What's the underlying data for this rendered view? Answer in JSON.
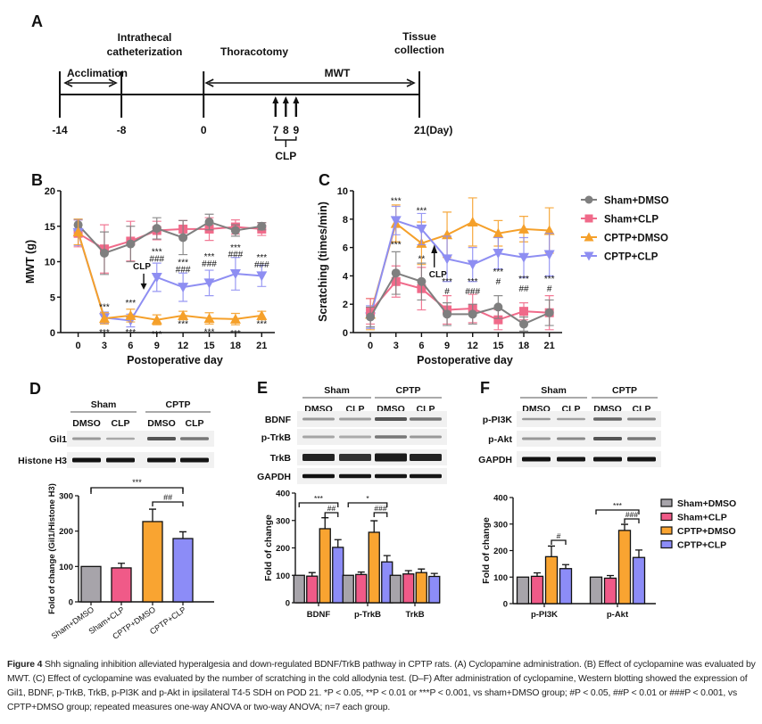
{
  "panels": {
    "A": {
      "label": "A",
      "timeline": {
        "ticks": [
          "-14",
          "-8",
          "0",
          "7",
          "8",
          "9",
          "21(Day)"
        ],
        "tick_days": [
          -14,
          -8,
          0,
          7,
          8,
          9,
          21
        ],
        "events": {
          "intrathecal": [
            "Intrathecal",
            "catheterization"
          ],
          "thoracotomy": "Thoracotomy",
          "tissue": [
            "Tissue",
            "collection"
          ],
          "acclimation": "Acclimation",
          "mwt": "MWT",
          "clp": "CLP"
        }
      }
    },
    "B": {
      "label": "B"
    },
    "C": {
      "label": "C"
    },
    "D": {
      "label": "D",
      "blot": {
        "groups": [
          "Sham",
          "CPTP"
        ],
        "lanes": [
          "DMSO",
          "CLP",
          "DMSO",
          "CLP"
        ],
        "rows": [
          "Gil1",
          "Histone H3"
        ]
      }
    },
    "E": {
      "label": "E",
      "blot": {
        "groups": [
          "Sham",
          "CPTP"
        ],
        "lanes": [
          "DMSO",
          "CLP",
          "DMSO",
          "CLP"
        ],
        "rows": [
          "BDNF",
          "p-TrkB",
          "TrkB",
          "GAPDH"
        ]
      }
    },
    "F": {
      "label": "F",
      "blot": {
        "groups": [
          "Sham",
          "CPTP"
        ],
        "lanes": [
          "DMSO",
          "CLP",
          "DMSO",
          "CLP"
        ],
        "rows": [
          "p-PI3K",
          "p-Akt",
          "GAPDH"
        ]
      }
    }
  },
  "colors": {
    "Sham+DMSO": "#7f7f7f",
    "Sham+CLP": "#f06a8a",
    "CPTP+DMSO": "#f5a02a",
    "CPTP+CLP": "#8e8ef2",
    "bar_sham_dmso": "#a7a4aa",
    "bar_sham_clp": "#f05a88",
    "bar_cptp_dmso": "#f9a431",
    "bar_cptp_clp": "#8c8cf7"
  },
  "legend": [
    "Sham+DMSO",
    "Sham+CLP",
    "CPTP+DMSO",
    "CPTP+CLP"
  ],
  "chart_data": [
    {
      "id": "B",
      "type": "line",
      "title": "",
      "xlabel": "Postoperative day",
      "ylabel": "MWT (g)",
      "x": [
        0,
        3,
        6,
        9,
        12,
        15,
        18,
        21
      ],
      "xticks": [
        "0",
        "3",
        "6",
        "9",
        "12",
        "15",
        "18",
        "21"
      ],
      "ylim": [
        0,
        20
      ],
      "yticks": [
        "0",
        "5",
        "10",
        "15",
        "20"
      ],
      "series": [
        {
          "name": "Sham+CLP",
          "marker": "square",
          "values": [
            14.0,
            11.8,
            12.9,
            14.4,
            14.6,
            14.6,
            14.9,
            14.6
          ],
          "err": [
            1.9,
            3.4,
            2.8,
            1.3,
            1.2,
            1.6,
            1.0,
            0.9
          ]
        },
        {
          "name": "Sham+DMSO",
          "marker": "circle",
          "values": [
            15.2,
            11.2,
            12.5,
            14.7,
            13.4,
            15.6,
            14.4,
            15.0
          ],
          "err": [
            0.8,
            3.0,
            2.5,
            1.5,
            2.4,
            1.1,
            0.8,
            0.5
          ]
        },
        {
          "name": "CPTP+CLP",
          "marker": "triangle-down",
          "values": [
            14.1,
            2.1,
            1.7,
            7.8,
            6.4,
            7.0,
            8.3,
            8.0
          ],
          "err": [
            1.8,
            0.8,
            0.9,
            2.0,
            2.0,
            1.8,
            2.3,
            1.5
          ]
        },
        {
          "name": "CPTP+DMSO",
          "marker": "triangle-up",
          "values": [
            14.2,
            2.0,
            2.4,
            1.8,
            2.4,
            2.0,
            1.9,
            2.4
          ],
          "err": [
            1.8,
            0.8,
            0.9,
            0.7,
            0.6,
            0.8,
            0.8,
            0.6
          ]
        }
      ],
      "annotations": [
        {
          "x": 3,
          "y": 3.2,
          "text": "***"
        },
        {
          "x": 3,
          "y": -0.4,
          "text": "***"
        },
        {
          "x": 6,
          "y": 3.8,
          "text": "***"
        },
        {
          "x": 6,
          "y": -0.4,
          "text": "***"
        },
        {
          "x": 9,
          "y": 11.0,
          "text": "***"
        },
        {
          "x": 9,
          "y": 10.0,
          "text": "###"
        },
        {
          "x": 9,
          "y": -0.6,
          "text": "***"
        },
        {
          "x": 12,
          "y": 9.5,
          "text": "***"
        },
        {
          "x": 12,
          "y": 8.5,
          "text": "###"
        },
        {
          "x": 12,
          "y": 0.8,
          "text": "***"
        },
        {
          "x": 15,
          "y": 10.3,
          "text": "***"
        },
        {
          "x": 15,
          "y": 9.3,
          "text": "###"
        },
        {
          "x": 15,
          "y": -0.3,
          "text": "***"
        },
        {
          "x": 18,
          "y": 11.6,
          "text": "***"
        },
        {
          "x": 18,
          "y": 10.6,
          "text": "###"
        },
        {
          "x": 18,
          "y": -0.5,
          "text": "***"
        },
        {
          "x": 21,
          "y": 10.2,
          "text": "***"
        },
        {
          "x": 21,
          "y": 9.2,
          "text": "###"
        },
        {
          "x": 21,
          "y": 0.8,
          "text": "***"
        }
      ],
      "clp_marker": {
        "x": 7.5,
        "label": "CLP",
        "direction": "down"
      }
    },
    {
      "id": "C",
      "type": "line",
      "title": "",
      "xlabel": "Postoperative day",
      "ylabel": "Scratching (times/min)",
      "x": [
        0,
        3,
        6,
        9,
        12,
        15,
        18,
        21
      ],
      "xticks": [
        "0",
        "3",
        "6",
        "9",
        "12",
        "15",
        "18",
        "21"
      ],
      "ylim": [
        0,
        10
      ],
      "yticks": [
        "0",
        "2",
        "4",
        "6",
        "8",
        "10"
      ],
      "legend_position": "right",
      "series": [
        {
          "name": "CPTP+DMSO",
          "marker": "triangle-up",
          "values": [
            1.3,
            7.7,
            6.3,
            6.9,
            7.8,
            7.0,
            7.3,
            7.2
          ],
          "err": [
            1.1,
            1.3,
            1.5,
            1.6,
            1.7,
            0.9,
            0.9,
            1.6
          ]
        },
        {
          "name": "CPTP+CLP",
          "marker": "triangle-down",
          "values": [
            1.1,
            7.9,
            7.3,
            5.2,
            4.8,
            5.6,
            5.3,
            5.5
          ],
          "err": [
            0.8,
            1.0,
            1.1,
            1.6,
            1.2,
            1.1,
            1.4,
            1.5
          ]
        },
        {
          "name": "Sham+CLP",
          "marker": "square",
          "values": [
            1.5,
            3.6,
            3.1,
            1.6,
            1.7,
            0.9,
            1.5,
            1.4
          ],
          "err": [
            0.9,
            1.1,
            1.5,
            1.0,
            1.0,
            0.7,
            0.6,
            1.2
          ]
        },
        {
          "name": "Sham+DMSO",
          "marker": "circle",
          "values": [
            1.1,
            4.2,
            3.6,
            1.3,
            1.3,
            1.8,
            0.6,
            1.4
          ],
          "err": [
            0.7,
            1.5,
            1.3,
            0.8,
            0.7,
            0.8,
            0.5,
            0.9
          ]
        }
      ],
      "annotations": [
        {
          "x": 3,
          "y": 9.1,
          "text": "***"
        },
        {
          "x": 3,
          "y": 6.0,
          "text": "***"
        },
        {
          "x": 6,
          "y": 8.4,
          "text": "***"
        },
        {
          "x": 6,
          "y": 5.0,
          "text": "**"
        },
        {
          "x": 9,
          "y": 3.4,
          "text": "***"
        },
        {
          "x": 9,
          "y": 2.7,
          "text": "#"
        },
        {
          "x": 12,
          "y": 3.4,
          "text": "***"
        },
        {
          "x": 12,
          "y": 2.7,
          "text": "###"
        },
        {
          "x": 15,
          "y": 4.1,
          "text": "***"
        },
        {
          "x": 15,
          "y": 3.4,
          "text": "#"
        },
        {
          "x": 18,
          "y": 3.6,
          "text": "***"
        },
        {
          "x": 18,
          "y": 2.9,
          "text": "##"
        },
        {
          "x": 21,
          "y": 3.6,
          "text": "***"
        },
        {
          "x": 21,
          "y": 2.9,
          "text": "#"
        }
      ],
      "clp_marker": {
        "x": 7.5,
        "label": "CLP",
        "direction": "up"
      }
    },
    {
      "id": "D",
      "type": "bar",
      "xlabel": "",
      "ylabel": "Fold of change (Gil1/Histone H3)",
      "categories": [
        "Sham+DMSO",
        "Sham+CLP",
        "CPTP+DMSO",
        "CPTP+CLP"
      ],
      "values": [
        100,
        96,
        227,
        179
      ],
      "err": [
        0,
        13,
        35,
        19
      ],
      "ylim": [
        0,
        300
      ],
      "yticks": [
        "0",
        "100",
        "200",
        "300"
      ],
      "brackets": [
        {
          "from": 0,
          "to": 3,
          "text": "***"
        },
        {
          "from": 2,
          "to": 3,
          "text": "##"
        }
      ]
    },
    {
      "id": "E",
      "type": "bar",
      "ylabel": "Fold of change",
      "categories": [
        "BDNF",
        "p-TrkB",
        "TrkB"
      ],
      "ylim": [
        0,
        400
      ],
      "yticks": [
        "0",
        "100",
        "200",
        "300",
        "400"
      ],
      "series": [
        {
          "name": "Sham+DMSO",
          "values": [
            100,
            100,
            100
          ],
          "err": [
            0,
            0,
            0
          ]
        },
        {
          "name": "Sham+CLP",
          "values": [
            97,
            103,
            105
          ],
          "err": [
            13,
            9,
            12
          ]
        },
        {
          "name": "CPTP+DMSO",
          "values": [
            270,
            257,
            110
          ],
          "err": [
            40,
            42,
            13
          ]
        },
        {
          "name": "CPTP+CLP",
          "values": [
            202,
            149,
            96
          ],
          "err": [
            28,
            23,
            11
          ]
        }
      ],
      "brackets": [
        {
          "category": 0,
          "from": 0,
          "to": 3,
          "text": "***"
        },
        {
          "category": 0,
          "from": 2,
          "to": 3,
          "text": "##"
        },
        {
          "category": 1,
          "from": 0,
          "to": 3,
          "text": "*"
        },
        {
          "category": 1,
          "from": 2,
          "to": 3,
          "text": "###"
        }
      ]
    },
    {
      "id": "F",
      "type": "bar",
      "ylabel": "Fold of change",
      "categories": [
        "p-PI3K",
        "p-Akt"
      ],
      "ylim": [
        0,
        400
      ],
      "yticks": [
        "0",
        "100",
        "200",
        "300",
        "400"
      ],
      "legend_position": "right",
      "series": [
        {
          "name": "Sham+DMSO",
          "values": [
            100,
            100
          ],
          "err": [
            0,
            0
          ]
        },
        {
          "name": "Sham+CLP",
          "values": [
            103,
            96
          ],
          "err": [
            13,
            10
          ]
        },
        {
          "name": "CPTP+DMSO",
          "values": [
            177,
            276
          ],
          "err": [
            40,
            23
          ]
        },
        {
          "name": "CPTP+CLP",
          "values": [
            132,
            174
          ],
          "err": [
            15,
            28
          ]
        }
      ],
      "brackets": [
        {
          "category": 0,
          "from": 2,
          "to": 3,
          "text": "#"
        },
        {
          "category": 1,
          "from": 0,
          "to": 3,
          "text": "***"
        },
        {
          "category": 1,
          "from": 2,
          "to": 3,
          "text": "###"
        }
      ]
    }
  ],
  "caption": {
    "label": "Figure 4",
    "text": " Shh signaling inhibition alleviated hyperalgesia and down-regulated BDNF/TrkB pathway in CPTP rats. (A) Cyclopamine administration. (B) Effect of cyclopamine was evaluated by MWT. (C) Effect of cyclopamine was evaluated by the number of scratching in the cold allodynia test. (D–F) After administration of cyclopamine, Western blotting showed the expression of Gil1, BDNF, p-TrkB, TrkB, p-PI3K and p-Akt in ipsilateral T4-5 SDH on POD 21. *P < 0.05, **P < 0.01 or ***P < 0.001, vs sham+DMSO group; #P < 0.05, ##P < 0.01 or ###P < 0.001, vs CPTP+DMSO group; repeated measures one-way ANOVA or two-way ANOVA; n=7 each group."
  }
}
